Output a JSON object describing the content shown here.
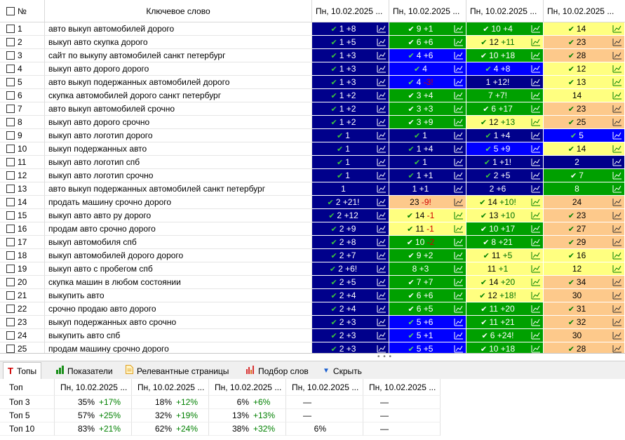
{
  "header": {
    "num_label": "№",
    "keyword_label": "Ключевое слово",
    "sort_indicator": "^",
    "date_columns": [
      "Пн, 10.02.2025 ...",
      "Пн, 10.02.2025 ...",
      "Пн, 10.02.2025 ...",
      "Пн, 10.02.2025 ..."
    ]
  },
  "position_cell_colors": {
    "navy": "#00008b",
    "blue": "#0000ff",
    "green": "#00a000",
    "yellow": "#ffff80",
    "peach": "#fdc98b"
  },
  "rows": [
    {
      "num": "1",
      "keyword": "авто выкуп автомобилей дорого",
      "cells": [
        {
          "color": "navy",
          "check": true,
          "pos": "1",
          "delta": "+8"
        },
        {
          "color": "green",
          "check": true,
          "pos": "9",
          "delta": "+1"
        },
        {
          "color": "green",
          "check": true,
          "pos": "10",
          "delta": "+4"
        },
        {
          "color": "yellow",
          "check": true,
          "pos": "14",
          "delta": ""
        }
      ]
    },
    {
      "num": "2",
      "keyword": "выкуп авто скупка дорого",
      "cells": [
        {
          "color": "navy",
          "check": true,
          "pos": "1",
          "delta": "+5"
        },
        {
          "color": "green",
          "check": true,
          "pos": "6",
          "delta": "+6"
        },
        {
          "color": "yellow",
          "check": true,
          "pos": "12",
          "delta": "+11"
        },
        {
          "color": "peach",
          "check": true,
          "pos": "23",
          "delta": ""
        }
      ]
    },
    {
      "num": "3",
      "keyword": "сайт по выкупу автомобилей санкт петербург",
      "cells": [
        {
          "color": "navy",
          "check": true,
          "pos": "1",
          "delta": "+3"
        },
        {
          "color": "blue",
          "check": true,
          "pos": "4",
          "delta": "+6"
        },
        {
          "color": "green",
          "check": true,
          "pos": "10",
          "delta": "+18"
        },
        {
          "color": "peach",
          "check": true,
          "pos": "28",
          "delta": ""
        }
      ]
    },
    {
      "num": "4",
      "keyword": "выкуп авто дорого дорого",
      "cells": [
        {
          "color": "navy",
          "check": true,
          "pos": "1",
          "delta": "+3"
        },
        {
          "color": "blue",
          "check": true,
          "pos": "4",
          "delta": ""
        },
        {
          "color": "blue",
          "check": true,
          "pos": "4",
          "delta": "+8"
        },
        {
          "color": "yellow",
          "check": true,
          "pos": "12",
          "delta": ""
        }
      ]
    },
    {
      "num": "5",
      "keyword": "авто выкуп подержанных автомобилей дорого",
      "cells": [
        {
          "color": "navy",
          "check": true,
          "pos": "1",
          "delta": "+3"
        },
        {
          "color": "blue",
          "check": true,
          "pos": "4",
          "delta": "-3!"
        },
        {
          "color": "navy",
          "check": false,
          "pos": "1",
          "delta": "+12!"
        },
        {
          "color": "yellow",
          "check": true,
          "pos": "13",
          "delta": ""
        }
      ]
    },
    {
      "num": "6",
      "keyword": "скупка автомобилей дорого санкт петербург",
      "cells": [
        {
          "color": "navy",
          "check": true,
          "pos": "1",
          "delta": "+2"
        },
        {
          "color": "green",
          "check": true,
          "pos": "3",
          "delta": "+4"
        },
        {
          "color": "green",
          "check": false,
          "pos": "7",
          "delta": "+7!"
        },
        {
          "color": "yellow",
          "check": false,
          "pos": "14",
          "delta": ""
        }
      ]
    },
    {
      "num": "7",
      "keyword": "авто выкуп автомобилей срочно",
      "cells": [
        {
          "color": "navy",
          "check": true,
          "pos": "1",
          "delta": "+2"
        },
        {
          "color": "green",
          "check": true,
          "pos": "3",
          "delta": "+3"
        },
        {
          "color": "green",
          "check": true,
          "pos": "6",
          "delta": "+17"
        },
        {
          "color": "peach",
          "check": true,
          "pos": "23",
          "delta": ""
        }
      ]
    },
    {
      "num": "8",
      "keyword": "выкуп авто дорого срочно",
      "cells": [
        {
          "color": "navy",
          "check": true,
          "pos": "1",
          "delta": "+2"
        },
        {
          "color": "green",
          "check": true,
          "pos": "3",
          "delta": "+9"
        },
        {
          "color": "yellow",
          "check": true,
          "pos": "12",
          "delta": "+13"
        },
        {
          "color": "peach",
          "check": true,
          "pos": "25",
          "delta": ""
        }
      ]
    },
    {
      "num": "9",
      "keyword": "выкуп авто логотип дорого",
      "cells": [
        {
          "color": "navy",
          "check": true,
          "pos": "1",
          "delta": ""
        },
        {
          "color": "navy",
          "check": true,
          "pos": "1",
          "delta": ""
        },
        {
          "color": "navy",
          "check": true,
          "pos": "1",
          "delta": "+4"
        },
        {
          "color": "blue",
          "check": true,
          "pos": "5",
          "delta": ""
        }
      ]
    },
    {
      "num": "10",
      "keyword": "выкуп подержанных авто",
      "cells": [
        {
          "color": "navy",
          "check": true,
          "pos": "1",
          "delta": ""
        },
        {
          "color": "navy",
          "check": true,
          "pos": "1",
          "delta": "+4"
        },
        {
          "color": "blue",
          "check": true,
          "pos": "5",
          "delta": "+9"
        },
        {
          "color": "yellow",
          "check": true,
          "pos": "14",
          "delta": ""
        }
      ]
    },
    {
      "num": "11",
      "keyword": "выкуп авто логотип спб",
      "cells": [
        {
          "color": "navy",
          "check": true,
          "pos": "1",
          "delta": ""
        },
        {
          "color": "navy",
          "check": true,
          "pos": "1",
          "delta": ""
        },
        {
          "color": "navy",
          "check": true,
          "pos": "1",
          "delta": "+1!"
        },
        {
          "color": "navy",
          "check": false,
          "pos": "2",
          "delta": ""
        }
      ]
    },
    {
      "num": "12",
      "keyword": "выкуп авто логотип срочно",
      "cells": [
        {
          "color": "navy",
          "check": true,
          "pos": "1",
          "delta": ""
        },
        {
          "color": "navy",
          "check": true,
          "pos": "1",
          "delta": "+1"
        },
        {
          "color": "navy",
          "check": true,
          "pos": "2",
          "delta": "+5"
        },
        {
          "color": "green",
          "check": true,
          "pos": "7",
          "delta": ""
        }
      ]
    },
    {
      "num": "13",
      "keyword": "авто выкуп подержанных автомобилей санкт петербург",
      "cells": [
        {
          "color": "navy",
          "check": false,
          "pos": "1",
          "delta": ""
        },
        {
          "color": "navy",
          "check": false,
          "pos": "1",
          "delta": "+1"
        },
        {
          "color": "navy",
          "check": false,
          "pos": "2",
          "delta": "+6"
        },
        {
          "color": "green",
          "check": false,
          "pos": "8",
          "delta": ""
        }
      ]
    },
    {
      "num": "14",
      "keyword": "продать машину срочно дорого",
      "cells": [
        {
          "color": "navy",
          "check": true,
          "pos": "2",
          "delta": "+21!"
        },
        {
          "color": "peach",
          "check": false,
          "pos": "23",
          "delta": "-9!"
        },
        {
          "color": "yellow",
          "check": true,
          "pos": "14",
          "delta": "+10!"
        },
        {
          "color": "peach",
          "check": false,
          "pos": "24",
          "delta": ""
        }
      ]
    },
    {
      "num": "15",
      "keyword": "выкуп авто авто ру дорого",
      "cells": [
        {
          "color": "navy",
          "check": true,
          "pos": "2",
          "delta": "+12"
        },
        {
          "color": "yellow",
          "check": true,
          "pos": "14",
          "delta": "-1"
        },
        {
          "color": "yellow",
          "check": true,
          "pos": "13",
          "delta": "+10"
        },
        {
          "color": "peach",
          "check": true,
          "pos": "23",
          "delta": ""
        }
      ]
    },
    {
      "num": "16",
      "keyword": "продам авто срочно дорого",
      "cells": [
        {
          "color": "navy",
          "check": true,
          "pos": "2",
          "delta": "+9"
        },
        {
          "color": "yellow",
          "check": true,
          "pos": "11",
          "delta": "-1"
        },
        {
          "color": "green",
          "check": true,
          "pos": "10",
          "delta": "+17"
        },
        {
          "color": "peach",
          "check": true,
          "pos": "27",
          "delta": ""
        }
      ]
    },
    {
      "num": "17",
      "keyword": "выкуп автомобиля спб",
      "cells": [
        {
          "color": "navy",
          "check": true,
          "pos": "2",
          "delta": "+8"
        },
        {
          "color": "green",
          "check": true,
          "pos": "10",
          "delta": "-2"
        },
        {
          "color": "green",
          "check": true,
          "pos": "8",
          "delta": "+21"
        },
        {
          "color": "peach",
          "check": true,
          "pos": "29",
          "delta": ""
        }
      ]
    },
    {
      "num": "18",
      "keyword": "выкуп автомобилей дорого дорого",
      "cells": [
        {
          "color": "navy",
          "check": true,
          "pos": "2",
          "delta": "+7"
        },
        {
          "color": "green",
          "check": true,
          "pos": "9",
          "delta": "+2"
        },
        {
          "color": "yellow",
          "check": true,
          "pos": "11",
          "delta": "+5"
        },
        {
          "color": "yellow",
          "check": true,
          "pos": "16",
          "delta": ""
        }
      ]
    },
    {
      "num": "19",
      "keyword": "выкуп авто с пробегом спб",
      "cells": [
        {
          "color": "navy",
          "check": true,
          "pos": "2",
          "delta": "+6!"
        },
        {
          "color": "green",
          "check": false,
          "pos": "8",
          "delta": "+3"
        },
        {
          "color": "yellow",
          "check": false,
          "pos": "11",
          "delta": "+1"
        },
        {
          "color": "yellow",
          "check": false,
          "pos": "12",
          "delta": ""
        }
      ]
    },
    {
      "num": "20",
      "keyword": "скупка машин в любом состоянии",
      "cells": [
        {
          "color": "navy",
          "check": true,
          "pos": "2",
          "delta": "+5"
        },
        {
          "color": "green",
          "check": true,
          "pos": "7",
          "delta": "+7"
        },
        {
          "color": "yellow",
          "check": true,
          "pos": "14",
          "delta": "+20"
        },
        {
          "color": "peach",
          "check": true,
          "pos": "34",
          "delta": ""
        }
      ]
    },
    {
      "num": "21",
      "keyword": "выкупить авто",
      "cells": [
        {
          "color": "navy",
          "check": true,
          "pos": "2",
          "delta": "+4"
        },
        {
          "color": "green",
          "check": true,
          "pos": "6",
          "delta": "+6"
        },
        {
          "color": "yellow",
          "check": true,
          "pos": "12",
          "delta": "+18!"
        },
        {
          "color": "peach",
          "check": false,
          "pos": "30",
          "delta": ""
        }
      ]
    },
    {
      "num": "22",
      "keyword": "срочно продаю авто дорого",
      "cells": [
        {
          "color": "navy",
          "check": true,
          "pos": "2",
          "delta": "+4"
        },
        {
          "color": "green",
          "check": true,
          "pos": "6",
          "delta": "+5"
        },
        {
          "color": "green",
          "check": true,
          "pos": "11",
          "delta": "+20"
        },
        {
          "color": "peach",
          "check": true,
          "pos": "31",
          "delta": ""
        }
      ]
    },
    {
      "num": "23",
      "keyword": "выкуп подержанных авто срочно",
      "cells": [
        {
          "color": "navy",
          "check": true,
          "pos": "2",
          "delta": "+3"
        },
        {
          "color": "blue",
          "check": true,
          "pos": "5",
          "delta": "+6"
        },
        {
          "color": "green",
          "check": true,
          "pos": "11",
          "delta": "+21"
        },
        {
          "color": "peach",
          "check": true,
          "pos": "32",
          "delta": ""
        }
      ]
    },
    {
      "num": "24",
      "keyword": "выкупить авто спб",
      "cells": [
        {
          "color": "navy",
          "check": true,
          "pos": "2",
          "delta": "+3"
        },
        {
          "color": "blue",
          "check": true,
          "pos": "5",
          "delta": "+1"
        },
        {
          "color": "green",
          "check": true,
          "pos": "6",
          "delta": "+24!"
        },
        {
          "color": "peach",
          "check": false,
          "pos": "30",
          "delta": ""
        }
      ]
    },
    {
      "num": "25",
      "keyword": "продам машину срочно дорого",
      "cells": [
        {
          "color": "navy",
          "check": true,
          "pos": "2",
          "delta": "+3"
        },
        {
          "color": "blue",
          "check": true,
          "pos": "5",
          "delta": "+5"
        },
        {
          "color": "green",
          "check": true,
          "pos": "10",
          "delta": "+18"
        },
        {
          "color": "peach",
          "check": true,
          "pos": "28",
          "delta": ""
        }
      ]
    }
  ],
  "tabs": [
    {
      "label": "Топы",
      "icon": "tops-icon",
      "glyph": "T",
      "active": true
    },
    {
      "label": "Показатели",
      "icon": "bar-chart-icon",
      "glyph": "",
      "active": false
    },
    {
      "label": "Релевантные страницы",
      "icon": "document-icon",
      "glyph": "",
      "active": false
    },
    {
      "label": "Подбор слов",
      "icon": "word-stats-icon",
      "glyph": "",
      "active": false
    },
    {
      "label": "Скрыть",
      "icon": "triangle-down-icon",
      "glyph": "▼",
      "active": false
    }
  ],
  "stats": {
    "header_label": "Топ",
    "columns": [
      "Пн, 10.02.2025 ...",
      "Пн, 10.02.2025 ...",
      "Пн, 10.02.2025 ...",
      "Пн, 10.02.2025 ...",
      "Пн, 10.02.2025 ..."
    ],
    "rows": [
      {
        "label": "Топ 3",
        "cells": [
          {
            "value": "35%",
            "delta": "+17%"
          },
          {
            "value": "18%",
            "delta": "+12%"
          },
          {
            "value": "6%",
            "delta": "+6%"
          },
          {
            "value": "—",
            "delta": ""
          },
          {
            "value": "—",
            "delta": ""
          }
        ]
      },
      {
        "label": "Топ 5",
        "cells": [
          {
            "value": "57%",
            "delta": "+25%"
          },
          {
            "value": "32%",
            "delta": "+19%"
          },
          {
            "value": "13%",
            "delta": "+13%"
          },
          {
            "value": "—",
            "delta": ""
          },
          {
            "value": "—",
            "delta": ""
          }
        ]
      },
      {
        "label": "Топ 10",
        "cells": [
          {
            "value": "83%",
            "delta": "+21%"
          },
          {
            "value": "62%",
            "delta": "+24%"
          },
          {
            "value": "38%",
            "delta": "+32%"
          },
          {
            "value": "6%",
            "delta": ""
          },
          {
            "value": "—",
            "delta": ""
          }
        ]
      }
    ]
  }
}
